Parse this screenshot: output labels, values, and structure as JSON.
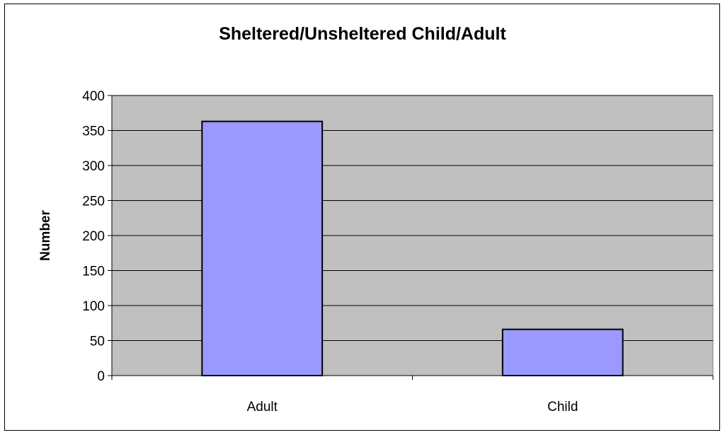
{
  "chart_data": {
    "type": "bar",
    "title": "Sheltered/Unsheltered Child/Adult",
    "xlabel": "",
    "ylabel": "Number",
    "categories": [
      "Adult",
      "Child"
    ],
    "values": [
      363,
      66
    ],
    "ylim": [
      0,
      400
    ],
    "yticks": [
      0,
      50,
      100,
      150,
      200,
      250,
      300,
      350,
      400
    ],
    "grid": true,
    "legend": "none",
    "colors": {
      "bar_fill": "#9999ff",
      "bar_stroke": "#000000",
      "plot_background": "#c0c0c0",
      "grid": "#000000"
    }
  }
}
